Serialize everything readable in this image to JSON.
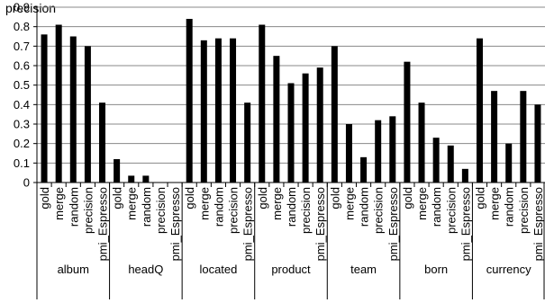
{
  "chart_data": {
    "type": "bar",
    "ylabel": "precision",
    "ylim": [
      0,
      0.9
    ],
    "yticks": [
      0,
      0.1,
      0.2,
      0.3,
      0.4,
      0.5,
      0.6,
      0.7,
      0.8,
      0.9
    ],
    "grid": true,
    "bar_color": "#000000",
    "groups": [
      {
        "name": "album",
        "categories": [
          "gold",
          "merge",
          "random",
          "precision",
          "pmi_Espresso"
        ],
        "values": [
          0.76,
          0.81,
          0.75,
          0.7,
          0.41
        ]
      },
      {
        "name": "headQ",
        "categories": [
          "gold",
          "merge",
          "random",
          "precision",
          "pmi_Espresso"
        ],
        "values": [
          0.12,
          0.035,
          0.035,
          0,
          0
        ]
      },
      {
        "name": "located",
        "categories": [
          "gold",
          "merge",
          "random",
          "precision",
          "pmi_Espresso"
        ],
        "values": [
          0.84,
          0.73,
          0.74,
          0.74,
          0.41
        ]
      },
      {
        "name": "product",
        "categories": [
          "gold",
          "merge",
          "random",
          "precision",
          "pmi_Espresso"
        ],
        "values": [
          0.81,
          0.65,
          0.51,
          0.56,
          0.59
        ]
      },
      {
        "name": "team",
        "categories": [
          "gold",
          "merge",
          "random",
          "precision",
          "pmi_Espresso"
        ],
        "values": [
          0.7,
          0.3,
          0.13,
          0.32,
          0.34
        ]
      },
      {
        "name": "born",
        "categories": [
          "gold",
          "merge",
          "random",
          "precision",
          "pmi_Espresso"
        ],
        "values": [
          0.62,
          0.41,
          0.23,
          0.19,
          0.07
        ]
      },
      {
        "name": "currency",
        "categories": [
          "gold",
          "merge",
          "random",
          "precision",
          "pmi_Espresso"
        ],
        "values": [
          0.74,
          0.47,
          0.2,
          0.47,
          0.4
        ]
      }
    ]
  }
}
